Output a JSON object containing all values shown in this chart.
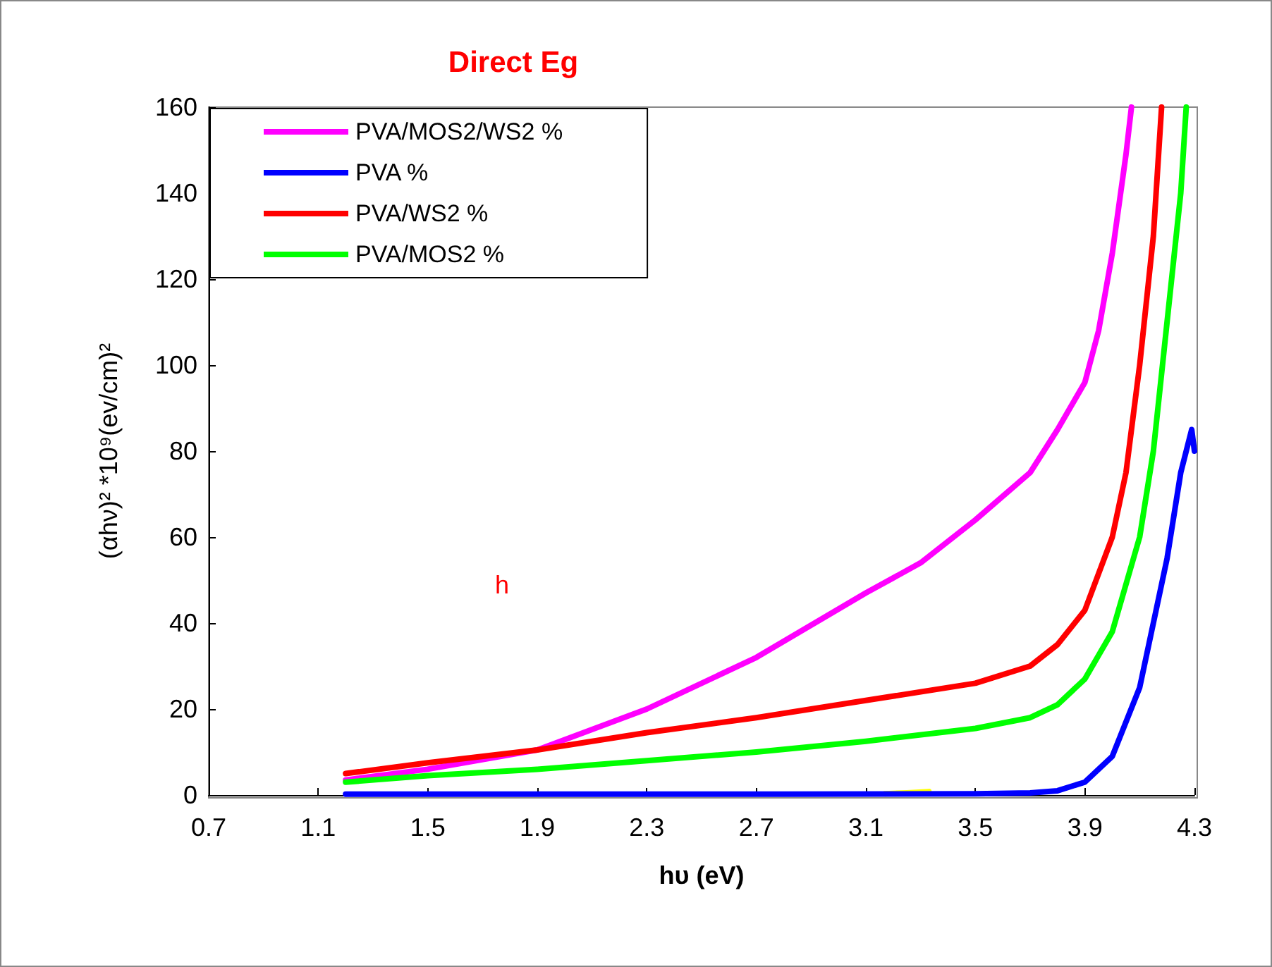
{
  "chart_data": {
    "type": "line",
    "title": "Direct Eg",
    "xlabel": "hυ (eV)",
    "ylabel": "(αhν)² *10⁹(ev/cm)²",
    "annotations": [
      "h"
    ],
    "xlim": [
      0.7,
      4.3
    ],
    "xticks": [
      0.7,
      1.1,
      1.5,
      1.9,
      2.3,
      2.7,
      3.1,
      3.5,
      3.9,
      4.3
    ],
    "ylim": [
      0,
      160
    ],
    "yticks": [
      0,
      20,
      40,
      60,
      80,
      100,
      120,
      140,
      160
    ],
    "grid": false,
    "legend": "top left",
    "marker": "none",
    "line_style": "solid",
    "series": [
      {
        "name": "PVA/MOS2/WS2 %",
        "color": "#ff00ff",
        "x": [
          1.2,
          1.5,
          1.9,
          2.3,
          2.7,
          3.1,
          3.3,
          3.5,
          3.7,
          3.8,
          3.9,
          3.95,
          4.0,
          4.05,
          4.07
        ],
        "values": [
          3.5,
          6,
          10.5,
          20,
          32,
          47,
          54,
          64,
          75,
          85,
          96,
          108,
          126,
          149,
          160
        ]
      },
      {
        "name": "PVA %",
        "color": "#0000ff",
        "x": [
          1.2,
          2.0,
          2.8,
          3.5,
          3.7,
          3.8,
          3.9,
          4.0,
          4.1,
          4.2,
          4.25,
          4.29,
          4.3
        ],
        "values": [
          0.2,
          0.2,
          0.2,
          0.3,
          0.5,
          1,
          3,
          9,
          25,
          55,
          75,
          85,
          80
        ]
      },
      {
        "name": "PVA/WS2 %",
        "color": "#ff0000",
        "x": [
          1.2,
          1.5,
          1.9,
          2.3,
          2.7,
          3.1,
          3.5,
          3.7,
          3.8,
          3.9,
          4.0,
          4.05,
          4.1,
          4.15,
          4.18
        ],
        "values": [
          5,
          7.5,
          10.5,
          14.5,
          18,
          22,
          26,
          30,
          35,
          43,
          60,
          75,
          100,
          130,
          160
        ]
      },
      {
        "name": "PVA/MOS2 %",
        "color": "#00ff00",
        "x": [
          1.2,
          1.5,
          1.9,
          2.3,
          2.7,
          3.1,
          3.5,
          3.7,
          3.8,
          3.9,
          4.0,
          4.1,
          4.15,
          4.2,
          4.25,
          4.27
        ],
        "values": [
          3,
          4.5,
          6,
          8,
          10,
          12.5,
          15.5,
          18,
          21,
          27,
          38,
          60,
          80,
          110,
          140,
          160
        ]
      },
      {
        "color": "#ffff00",
        "x": [
          3.17,
          3.25,
          3.33
        ],
        "values": [
          0.3,
          0.5,
          0.8
        ]
      }
    ]
  }
}
